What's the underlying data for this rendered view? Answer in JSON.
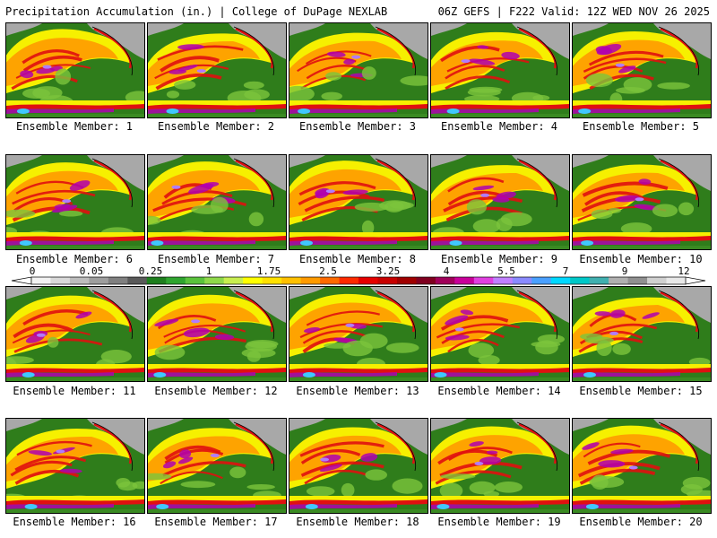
{
  "header": {
    "left": "Precipitation Accumulation (in.) | College of DuPage NEXLAB",
    "right": "06Z GEFS | F222 Valid: 12Z WED NOV 26 2025"
  },
  "caption_prefix": "Ensemble Member: ",
  "members": [
    {
      "label": "Ensemble Member: 1",
      "number": 1
    },
    {
      "label": "Ensemble Member: 2",
      "number": 2
    },
    {
      "label": "Ensemble Member: 3",
      "number": 3
    },
    {
      "label": "Ensemble Member: 4",
      "number": 4
    },
    {
      "label": "Ensemble Member: 5",
      "number": 5
    },
    {
      "label": "Ensemble Member: 6",
      "number": 6
    },
    {
      "label": "Ensemble Member: 7",
      "number": 7
    },
    {
      "label": "Ensemble Member: 8",
      "number": 8
    },
    {
      "label": "Ensemble Member: 9",
      "number": 9
    },
    {
      "label": "Ensemble Member: 10",
      "number": 10
    },
    {
      "label": "Ensemble Member: 11",
      "number": 11
    },
    {
      "label": "Ensemble Member: 12",
      "number": 12
    },
    {
      "label": "Ensemble Member: 13",
      "number": 13
    },
    {
      "label": "Ensemble Member: 14",
      "number": 14
    },
    {
      "label": "Ensemble Member: 15",
      "number": 15
    },
    {
      "label": "Ensemble Member: 16",
      "number": 16
    },
    {
      "label": "Ensemble Member: 17",
      "number": 17
    },
    {
      "label": "Ensemble Member: 18",
      "number": 18
    },
    {
      "label": "Ensemble Member: 19",
      "number": 19
    },
    {
      "label": "Ensemble Member: 20",
      "number": 20
    }
  ],
  "colorbar": {
    "tick_labels": [
      "0",
      "0.05",
      "0.25",
      "1",
      "1.75",
      "2.5",
      "3.25",
      "4",
      "5.5",
      "7",
      "9",
      "12"
    ],
    "colors": [
      "#f2f2f2",
      "#d9d9d9",
      "#bdbdbd",
      "#9e9e9e",
      "#808080",
      "#5a5a5a",
      "#1e7f1e",
      "#2fa52f",
      "#5ac33c",
      "#8fd94a",
      "#c8ee50",
      "#ffff00",
      "#ffe100",
      "#ffc000",
      "#ff9a00",
      "#ff6a00",
      "#ff2a00",
      "#e60000",
      "#c80000",
      "#a00000",
      "#800020",
      "#a0005a",
      "#c8009a",
      "#e040e0",
      "#c080ff",
      "#8a8aff",
      "#4aa0ff",
      "#00d8ff",
      "#00c8c8",
      "#40b0b0",
      "#b0b0b0",
      "#909090",
      "#d0d0d0",
      "#e8e8e8"
    ]
  },
  "palette": {
    "ocean_green": "#2f7d1b",
    "land_green": "#3a8a22",
    "light_green": "#7cc43c",
    "yellow": "#f6f000",
    "orange": "#ff9a00",
    "red": "#e01010",
    "purple": "#b000b0",
    "lavender": "#b07cff",
    "cyan": "#40c8ff",
    "gray": "#a8a8a8"
  }
}
